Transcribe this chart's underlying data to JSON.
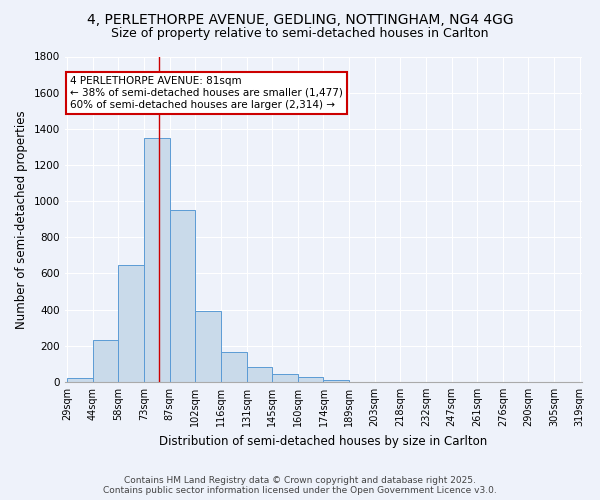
{
  "title_line1": "4, PERLETHORPE AVENUE, GEDLING, NOTTINGHAM, NG4 4GG",
  "title_line2": "Size of property relative to semi-detached houses in Carlton",
  "xlabel": "Distribution of semi-detached houses by size in Carlton",
  "ylabel": "Number of semi-detached properties",
  "bin_labels": [
    "29sqm",
    "44sqm",
    "58sqm",
    "73sqm",
    "87sqm",
    "102sqm",
    "116sqm",
    "131sqm",
    "145sqm",
    "160sqm",
    "174sqm",
    "189sqm",
    "203sqm",
    "218sqm",
    "232sqm",
    "247sqm",
    "261sqm",
    "276sqm",
    "290sqm",
    "305sqm",
    "319sqm"
  ],
  "bar_heights": [
    20,
    230,
    645,
    1350,
    950,
    395,
    165,
    85,
    42,
    25,
    8,
    2,
    1,
    0,
    0,
    0,
    0,
    0,
    0,
    0
  ],
  "bar_color": "#c9daea",
  "bar_edge_color": "#5b9bd5",
  "property_bin_index": 3,
  "property_size_label": "81sqm",
  "property_line_color": "#cc0000",
  "annotation_text": "4 PERLETHORPE AVENUE: 81sqm\n← 38% of semi-detached houses are smaller (1,477)\n60% of semi-detached houses are larger (2,314) →",
  "annotation_box_color": "#ffffff",
  "annotation_box_edge": "#cc0000",
  "ylim": [
    0,
    1800
  ],
  "yticks": [
    0,
    200,
    400,
    600,
    800,
    1000,
    1200,
    1400,
    1600,
    1800
  ],
  "background_color": "#eef2fa",
  "grid_color": "#ffffff",
  "footer_line1": "Contains HM Land Registry data © Crown copyright and database right 2025.",
  "footer_line2": "Contains public sector information licensed under the Open Government Licence v3.0.",
  "title_fontsize": 10,
  "subtitle_fontsize": 9,
  "axis_label_fontsize": 8.5,
  "tick_fontsize": 7,
  "annotation_fontsize": 7.5,
  "footer_fontsize": 6.5
}
